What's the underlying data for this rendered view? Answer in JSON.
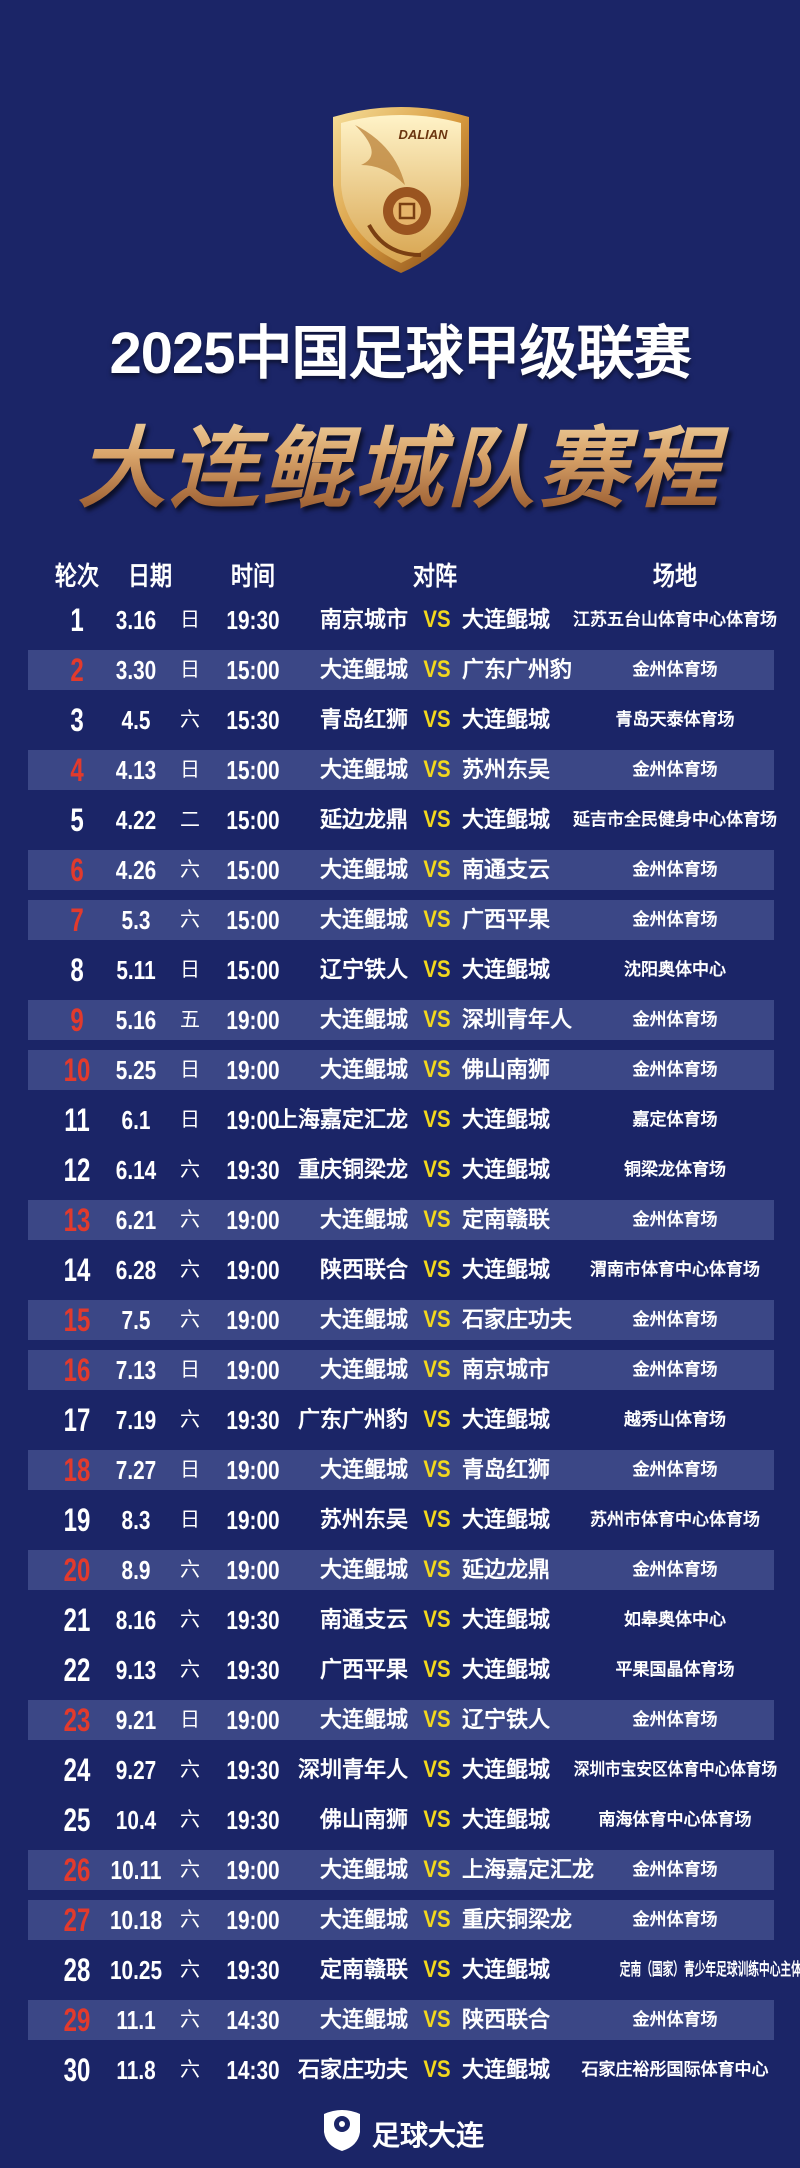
{
  "crest": {
    "text": "DALIAN"
  },
  "header": {
    "title": "2025中国足球甲级联赛",
    "subtitle": "大连鲲城队赛程"
  },
  "table": {
    "columns": [
      "轮次",
      "日期",
      "时间",
      "对阵",
      "场地"
    ],
    "vs_label": "VS",
    "colors": {
      "background": "#1b2567",
      "stripe": "#3b4786",
      "home_round": "#e23a2c",
      "vs": "#f3d81c"
    },
    "rows": [
      {
        "round": "1",
        "date": "3.16",
        "weekday": "日",
        "time": "19:30",
        "home": "南京城市",
        "away": "大连鲲城",
        "venue": "江苏五台山体育中心体育场",
        "dalian_home": false
      },
      {
        "round": "2",
        "date": "3.30",
        "weekday": "日",
        "time": "15:00",
        "home": "大连鲲城",
        "away": "广东广州豹",
        "venue": "金州体育场",
        "dalian_home": true
      },
      {
        "round": "3",
        "date": "4.5",
        "weekday": "六",
        "time": "15:30",
        "home": "青岛红狮",
        "away": "大连鲲城",
        "venue": "青岛天泰体育场",
        "dalian_home": false
      },
      {
        "round": "4",
        "date": "4.13",
        "weekday": "日",
        "time": "15:00",
        "home": "大连鲲城",
        "away": "苏州东吴",
        "venue": "金州体育场",
        "dalian_home": true
      },
      {
        "round": "5",
        "date": "4.22",
        "weekday": "二",
        "time": "15:00",
        "home": "延边龙鼎",
        "away": "大连鲲城",
        "venue": "延吉市全民健身中心体育场",
        "dalian_home": false
      },
      {
        "round": "6",
        "date": "4.26",
        "weekday": "六",
        "time": "15:00",
        "home": "大连鲲城",
        "away": "南通支云",
        "venue": "金州体育场",
        "dalian_home": true
      },
      {
        "round": "7",
        "date": "5.3",
        "weekday": "六",
        "time": "15:00",
        "home": "大连鲲城",
        "away": "广西平果",
        "venue": "金州体育场",
        "dalian_home": true
      },
      {
        "round": "8",
        "date": "5.11",
        "weekday": "日",
        "time": "15:00",
        "home": "辽宁铁人",
        "away": "大连鲲城",
        "venue": "沈阳奥体中心",
        "dalian_home": false
      },
      {
        "round": "9",
        "date": "5.16",
        "weekday": "五",
        "time": "19:00",
        "home": "大连鲲城",
        "away": "深圳青年人",
        "venue": "金州体育场",
        "dalian_home": true
      },
      {
        "round": "10",
        "date": "5.25",
        "weekday": "日",
        "time": "19:00",
        "home": "大连鲲城",
        "away": "佛山南狮",
        "venue": "金州体育场",
        "dalian_home": true
      },
      {
        "round": "11",
        "date": "6.1",
        "weekday": "日",
        "time": "19:00",
        "home": "上海嘉定汇龙",
        "away": "大连鲲城",
        "venue": "嘉定体育场",
        "dalian_home": false
      },
      {
        "round": "12",
        "date": "6.14",
        "weekday": "六",
        "time": "19:30",
        "home": "重庆铜梁龙",
        "away": "大连鲲城",
        "venue": "铜梁龙体育场",
        "dalian_home": false
      },
      {
        "round": "13",
        "date": "6.21",
        "weekday": "六",
        "time": "19:00",
        "home": "大连鲲城",
        "away": "定南赣联",
        "venue": "金州体育场",
        "dalian_home": true
      },
      {
        "round": "14",
        "date": "6.28",
        "weekday": "六",
        "time": "19:00",
        "home": "陕西联合",
        "away": "大连鲲城",
        "venue": "渭南市体育中心体育场",
        "dalian_home": false
      },
      {
        "round": "15",
        "date": "7.5",
        "weekday": "六",
        "time": "19:00",
        "home": "大连鲲城",
        "away": "石家庄功夫",
        "venue": "金州体育场",
        "dalian_home": true
      },
      {
        "round": "16",
        "date": "7.13",
        "weekday": "日",
        "time": "19:00",
        "home": "大连鲲城",
        "away": "南京城市",
        "venue": "金州体育场",
        "dalian_home": true
      },
      {
        "round": "17",
        "date": "7.19",
        "weekday": "六",
        "time": "19:30",
        "home": "广东广州豹",
        "away": "大连鲲城",
        "venue": "越秀山体育场",
        "dalian_home": false
      },
      {
        "round": "18",
        "date": "7.27",
        "weekday": "日",
        "time": "19:00",
        "home": "大连鲲城",
        "away": "青岛红狮",
        "venue": "金州体育场",
        "dalian_home": true
      },
      {
        "round": "19",
        "date": "8.3",
        "weekday": "日",
        "time": "19:00",
        "home": "苏州东吴",
        "away": "大连鲲城",
        "venue": "苏州市体育中心体育场",
        "dalian_home": false
      },
      {
        "round": "20",
        "date": "8.9",
        "weekday": "六",
        "time": "19:00",
        "home": "大连鲲城",
        "away": "延边龙鼎",
        "venue": "金州体育场",
        "dalian_home": true
      },
      {
        "round": "21",
        "date": "8.16",
        "weekday": "六",
        "time": "19:30",
        "home": "南通支云",
        "away": "大连鲲城",
        "venue": "如皋奥体中心",
        "dalian_home": false
      },
      {
        "round": "22",
        "date": "9.13",
        "weekday": "六",
        "time": "19:30",
        "home": "广西平果",
        "away": "大连鲲城",
        "venue": "平果国晶体育场",
        "dalian_home": false
      },
      {
        "round": "23",
        "date": "9.21",
        "weekday": "日",
        "time": "19:00",
        "home": "大连鲲城",
        "away": "辽宁铁人",
        "venue": "金州体育场",
        "dalian_home": true
      },
      {
        "round": "24",
        "date": "9.27",
        "weekday": "六",
        "time": "19:30",
        "home": "深圳青年人",
        "away": "大连鲲城",
        "venue": "深圳市宝安区体育中心体育场",
        "dalian_home": false
      },
      {
        "round": "25",
        "date": "10.4",
        "weekday": "六",
        "time": "19:30",
        "home": "佛山南狮",
        "away": "大连鲲城",
        "venue": "南海体育中心体育场",
        "dalian_home": false
      },
      {
        "round": "26",
        "date": "10.11",
        "weekday": "六",
        "time": "19:00",
        "home": "大连鲲城",
        "away": "上海嘉定汇龙",
        "venue": "金州体育场",
        "dalian_home": true
      },
      {
        "round": "27",
        "date": "10.18",
        "weekday": "六",
        "time": "19:00",
        "home": "大连鲲城",
        "away": "重庆铜梁龙",
        "venue": "金州体育场",
        "dalian_home": true
      },
      {
        "round": "28",
        "date": "10.25",
        "weekday": "六",
        "time": "19:30",
        "home": "定南赣联",
        "away": "大连鲲城",
        "venue": "定南（国家）青少年足球训练中心主体育场",
        "dalian_home": false
      },
      {
        "round": "29",
        "date": "11.1",
        "weekday": "六",
        "time": "14:30",
        "home": "大连鲲城",
        "away": "陕西联合",
        "venue": "金州体育场",
        "dalian_home": true
      },
      {
        "round": "30",
        "date": "11.8",
        "weekday": "六",
        "time": "14:30",
        "home": "石家庄功夫",
        "away": "大连鲲城",
        "venue": "石家庄裕彤国际体育中心",
        "dalian_home": false
      }
    ]
  },
  "footer": {
    "brand": "足球大连",
    "icon": "football-shield-icon"
  }
}
